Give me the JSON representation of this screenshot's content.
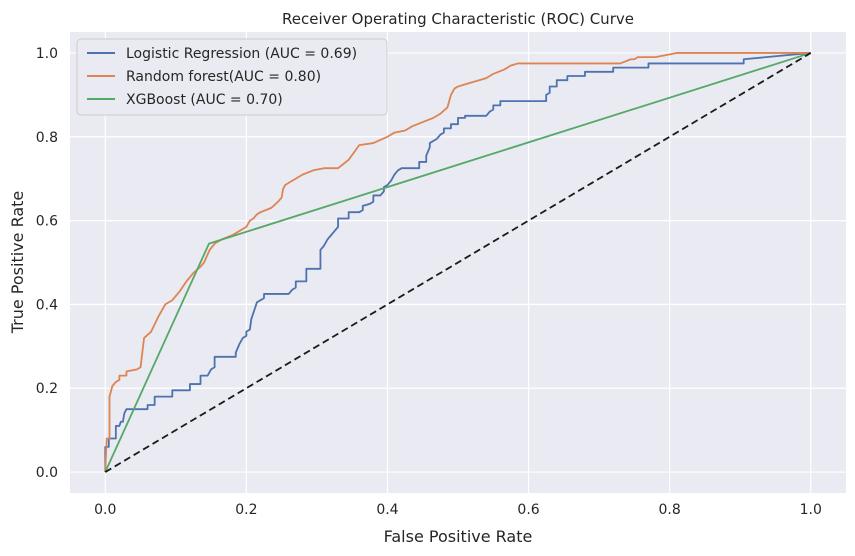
{
  "chart_data": {
    "type": "line",
    "title": "Receiver Operating Characteristic (ROC) Curve",
    "xlabel": "False Positive Rate",
    "ylabel": "True Positive Rate",
    "xlim": [
      -0.05,
      1.05
    ],
    "ylim": [
      -0.05,
      1.05
    ],
    "xticks": [
      0.0,
      0.2,
      0.4,
      0.6,
      0.8,
      1.0
    ],
    "yticks": [
      0.0,
      0.2,
      0.4,
      0.6,
      0.8,
      1.0
    ],
    "xtick_labels": [
      "0.0",
      "0.2",
      "0.4",
      "0.6",
      "0.8",
      "1.0"
    ],
    "ytick_labels": [
      "0.0",
      "0.2",
      "0.4",
      "0.6",
      "0.8",
      "1.0"
    ],
    "grid": true,
    "legend_position": "top-left",
    "series": [
      {
        "name": "Logistic Regression (AUC = 0.69)",
        "color": "#4c72b0",
        "style": "solid",
        "x": [
          0,
          0.0,
          0.005,
          0.005,
          0.015,
          0.015,
          0.02,
          0.022,
          0.025,
          0.027,
          0.03,
          0.035,
          0.06,
          0.06,
          0.07,
          0.07,
          0.095,
          0.095,
          0.12,
          0.12,
          0.135,
          0.135,
          0.145,
          0.15,
          0.155,
          0.155,
          0.185,
          0.185,
          0.19,
          0.195,
          0.2,
          0.2,
          0.205,
          0.207,
          0.21,
          0.212,
          0.215,
          0.225,
          0.225,
          0.26,
          0.265,
          0.27,
          0.27,
          0.285,
          0.285,
          0.305,
          0.305,
          0.31,
          0.315,
          0.32,
          0.325,
          0.33,
          0.33,
          0.345,
          0.345,
          0.36,
          0.365,
          0.365,
          0.375,
          0.38,
          0.38,
          0.39,
          0.395,
          0.395,
          0.4,
          0.405,
          0.41,
          0.415,
          0.42,
          0.445,
          0.445,
          0.455,
          0.455,
          0.46,
          0.46,
          0.47,
          0.475,
          0.48,
          0.48,
          0.49,
          0.49,
          0.5,
          0.5,
          0.51,
          0.51,
          0.54,
          0.545,
          0.55,
          0.55,
          0.56,
          0.56,
          0.565,
          0.565,
          0.575,
          0.575,
          0.625,
          0.625,
          0.63,
          0.63,
          0.64,
          0.64,
          0.655,
          0.655,
          0.68,
          0.68,
          0.72,
          0.72,
          0.77,
          0.77,
          0.905,
          0.905,
          1.0
        ],
        "y": [
          0,
          0.06,
          0.06,
          0.08,
          0.08,
          0.11,
          0.11,
          0.12,
          0.12,
          0.14,
          0.15,
          0.15,
          0.15,
          0.16,
          0.16,
          0.18,
          0.18,
          0.195,
          0.195,
          0.21,
          0.21,
          0.23,
          0.23,
          0.245,
          0.25,
          0.275,
          0.275,
          0.285,
          0.305,
          0.32,
          0.325,
          0.335,
          0.34,
          0.365,
          0.38,
          0.39,
          0.405,
          0.415,
          0.425,
          0.425,
          0.435,
          0.44,
          0.455,
          0.455,
          0.485,
          0.485,
          0.53,
          0.54,
          0.555,
          0.565,
          0.575,
          0.585,
          0.605,
          0.605,
          0.62,
          0.62,
          0.625,
          0.635,
          0.64,
          0.645,
          0.66,
          0.66,
          0.67,
          0.68,
          0.685,
          0.695,
          0.71,
          0.72,
          0.725,
          0.725,
          0.74,
          0.74,
          0.755,
          0.775,
          0.785,
          0.795,
          0.805,
          0.81,
          0.82,
          0.82,
          0.83,
          0.83,
          0.845,
          0.845,
          0.85,
          0.85,
          0.86,
          0.865,
          0.875,
          0.875,
          0.885,
          0.885,
          0.885,
          0.885,
          0.885,
          0.885,
          0.9,
          0.905,
          0.92,
          0.92,
          0.935,
          0.935,
          0.945,
          0.945,
          0.955,
          0.955,
          0.965,
          0.965,
          0.975,
          0.975,
          0.985,
          1.0
        ]
      },
      {
        "name": "Random forest(AUC = 0.80)",
        "color": "#dd8452",
        "style": "solid",
        "x": [
          0,
          0.002,
          0.002,
          0.006,
          0.006,
          0.01,
          0.015,
          0.02,
          0.02,
          0.03,
          0.03,
          0.045,
          0.05,
          0.055,
          0.065,
          0.075,
          0.085,
          0.095,
          0.105,
          0.115,
          0.125,
          0.135,
          0.14,
          0.148,
          0.155,
          0.165,
          0.18,
          0.19,
          0.2,
          0.205,
          0.21,
          0.215,
          0.22,
          0.235,
          0.245,
          0.25,
          0.252,
          0.255,
          0.265,
          0.28,
          0.295,
          0.31,
          0.33,
          0.345,
          0.36,
          0.38,
          0.4,
          0.41,
          0.425,
          0.435,
          0.45,
          0.465,
          0.475,
          0.485,
          0.49,
          0.495,
          0.5,
          0.51,
          0.52,
          0.53,
          0.54,
          0.55,
          0.565,
          0.575,
          0.585,
          0.6,
          0.73,
          0.745,
          0.75,
          0.755,
          0.78,
          0.81,
          1.0
        ],
        "y": [
          0,
          0.08,
          0.08,
          0.08,
          0.18,
          0.205,
          0.215,
          0.22,
          0.23,
          0.23,
          0.24,
          0.245,
          0.25,
          0.32,
          0.335,
          0.37,
          0.4,
          0.41,
          0.43,
          0.455,
          0.475,
          0.49,
          0.5,
          0.53,
          0.545,
          0.555,
          0.565,
          0.575,
          0.585,
          0.6,
          0.605,
          0.615,
          0.62,
          0.63,
          0.645,
          0.655,
          0.675,
          0.685,
          0.695,
          0.71,
          0.72,
          0.725,
          0.725,
          0.745,
          0.78,
          0.785,
          0.8,
          0.81,
          0.815,
          0.825,
          0.835,
          0.845,
          0.855,
          0.87,
          0.9,
          0.915,
          0.92,
          0.925,
          0.93,
          0.935,
          0.94,
          0.95,
          0.96,
          0.97,
          0.975,
          0.975,
          0.975,
          0.985,
          0.985,
          0.99,
          0.99,
          1.0,
          1.0
        ]
      },
      {
        "name": "XGBoost (AUC = 0.70)",
        "color": "#55a868",
        "style": "solid",
        "x": [
          0,
          0.147,
          1.0
        ],
        "y": [
          0,
          0.545,
          1.0
        ]
      },
      {
        "name": "",
        "color": "#1a1a1a",
        "style": "dashed",
        "x": [
          0,
          1
        ],
        "y": [
          0,
          1
        ]
      }
    ]
  }
}
